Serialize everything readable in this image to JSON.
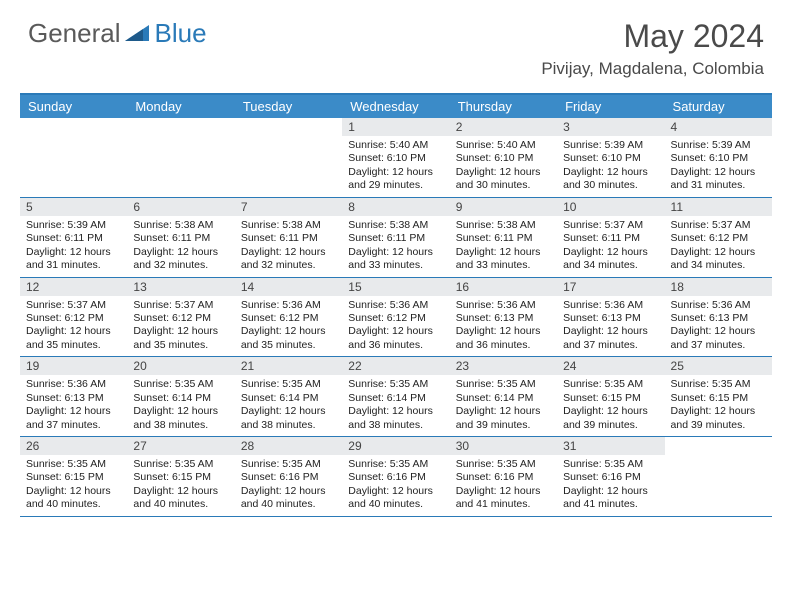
{
  "logo": {
    "text1": "General",
    "text2": "Blue"
  },
  "title": "May 2024",
  "location": "Pivijay, Magdalena, Colombia",
  "colors": {
    "header_bg": "#3b8bc8",
    "accent_border": "#2a7ab8",
    "daynum_bg": "#e8eaec",
    "text_dark": "#222222",
    "title_gray": "#4a4a4a"
  },
  "day_labels": [
    "Sunday",
    "Monday",
    "Tuesday",
    "Wednesday",
    "Thursday",
    "Friday",
    "Saturday"
  ],
  "weeks": [
    [
      null,
      null,
      null,
      {
        "n": "1",
        "sr": "5:40 AM",
        "ss": "6:10 PM",
        "dl": "12 hours and 29 minutes."
      },
      {
        "n": "2",
        "sr": "5:40 AM",
        "ss": "6:10 PM",
        "dl": "12 hours and 30 minutes."
      },
      {
        "n": "3",
        "sr": "5:39 AM",
        "ss": "6:10 PM",
        "dl": "12 hours and 30 minutes."
      },
      {
        "n": "4",
        "sr": "5:39 AM",
        "ss": "6:10 PM",
        "dl": "12 hours and 31 minutes."
      }
    ],
    [
      {
        "n": "5",
        "sr": "5:39 AM",
        "ss": "6:11 PM",
        "dl": "12 hours and 31 minutes."
      },
      {
        "n": "6",
        "sr": "5:38 AM",
        "ss": "6:11 PM",
        "dl": "12 hours and 32 minutes."
      },
      {
        "n": "7",
        "sr": "5:38 AM",
        "ss": "6:11 PM",
        "dl": "12 hours and 32 minutes."
      },
      {
        "n": "8",
        "sr": "5:38 AM",
        "ss": "6:11 PM",
        "dl": "12 hours and 33 minutes."
      },
      {
        "n": "9",
        "sr": "5:38 AM",
        "ss": "6:11 PM",
        "dl": "12 hours and 33 minutes."
      },
      {
        "n": "10",
        "sr": "5:37 AM",
        "ss": "6:11 PM",
        "dl": "12 hours and 34 minutes."
      },
      {
        "n": "11",
        "sr": "5:37 AM",
        "ss": "6:12 PM",
        "dl": "12 hours and 34 minutes."
      }
    ],
    [
      {
        "n": "12",
        "sr": "5:37 AM",
        "ss": "6:12 PM",
        "dl": "12 hours and 35 minutes."
      },
      {
        "n": "13",
        "sr": "5:37 AM",
        "ss": "6:12 PM",
        "dl": "12 hours and 35 minutes."
      },
      {
        "n": "14",
        "sr": "5:36 AM",
        "ss": "6:12 PM",
        "dl": "12 hours and 35 minutes."
      },
      {
        "n": "15",
        "sr": "5:36 AM",
        "ss": "6:12 PM",
        "dl": "12 hours and 36 minutes."
      },
      {
        "n": "16",
        "sr": "5:36 AM",
        "ss": "6:13 PM",
        "dl": "12 hours and 36 minutes."
      },
      {
        "n": "17",
        "sr": "5:36 AM",
        "ss": "6:13 PM",
        "dl": "12 hours and 37 minutes."
      },
      {
        "n": "18",
        "sr": "5:36 AM",
        "ss": "6:13 PM",
        "dl": "12 hours and 37 minutes."
      }
    ],
    [
      {
        "n": "19",
        "sr": "5:36 AM",
        "ss": "6:13 PM",
        "dl": "12 hours and 37 minutes."
      },
      {
        "n": "20",
        "sr": "5:35 AM",
        "ss": "6:14 PM",
        "dl": "12 hours and 38 minutes."
      },
      {
        "n": "21",
        "sr": "5:35 AM",
        "ss": "6:14 PM",
        "dl": "12 hours and 38 minutes."
      },
      {
        "n": "22",
        "sr": "5:35 AM",
        "ss": "6:14 PM",
        "dl": "12 hours and 38 minutes."
      },
      {
        "n": "23",
        "sr": "5:35 AM",
        "ss": "6:14 PM",
        "dl": "12 hours and 39 minutes."
      },
      {
        "n": "24",
        "sr": "5:35 AM",
        "ss": "6:15 PM",
        "dl": "12 hours and 39 minutes."
      },
      {
        "n": "25",
        "sr": "5:35 AM",
        "ss": "6:15 PM",
        "dl": "12 hours and 39 minutes."
      }
    ],
    [
      {
        "n": "26",
        "sr": "5:35 AM",
        "ss": "6:15 PM",
        "dl": "12 hours and 40 minutes."
      },
      {
        "n": "27",
        "sr": "5:35 AM",
        "ss": "6:15 PM",
        "dl": "12 hours and 40 minutes."
      },
      {
        "n": "28",
        "sr": "5:35 AM",
        "ss": "6:16 PM",
        "dl": "12 hours and 40 minutes."
      },
      {
        "n": "29",
        "sr": "5:35 AM",
        "ss": "6:16 PM",
        "dl": "12 hours and 40 minutes."
      },
      {
        "n": "30",
        "sr": "5:35 AM",
        "ss": "6:16 PM",
        "dl": "12 hours and 41 minutes."
      },
      {
        "n": "31",
        "sr": "5:35 AM",
        "ss": "6:16 PM",
        "dl": "12 hours and 41 minutes."
      },
      null
    ]
  ],
  "labels": {
    "sunrise": "Sunrise:",
    "sunset": "Sunset:",
    "daylight": "Daylight:"
  }
}
